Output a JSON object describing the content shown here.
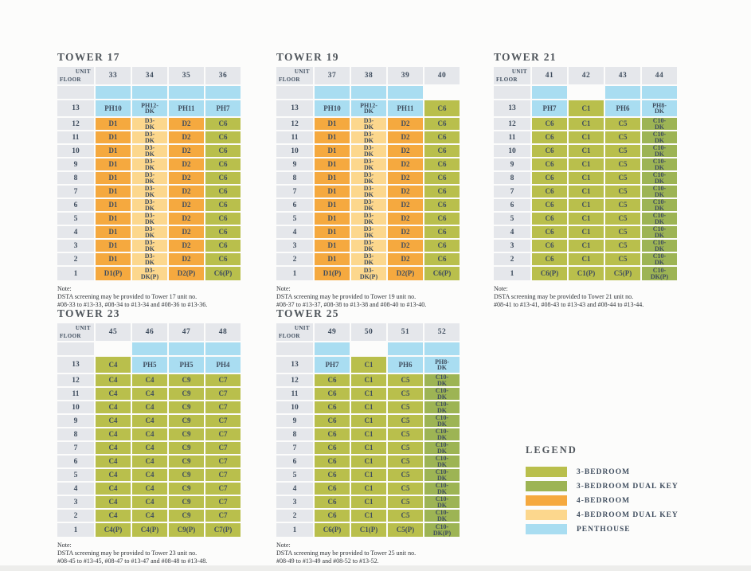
{
  "colors": {
    "3br": "#b9bf4c",
    "3br_dk": "#9db454",
    "4br": "#f5a93f",
    "4br_dk": "#fcd78d",
    "ph": "#a9ddf1",
    "hdr": "#e5e7eb",
    "text": "#3f4d5e",
    "title": "#50565c",
    "note": "#2e3237"
  },
  "corner": {
    "top": "UNIT",
    "bottom": "FLOOR"
  },
  "floors": [
    "13",
    "12",
    "11",
    "10",
    "9",
    "8",
    "7",
    "6",
    "5",
    "4",
    "3",
    "2",
    "1"
  ],
  "towers": [
    {
      "name": "TOWER 17",
      "units": [
        "33",
        "34",
        "35",
        "36"
      ],
      "spacer": [
        "ph",
        "ph",
        "ph",
        "ph"
      ],
      "floor13": [
        {
          "v": "PH10",
          "t": "ph"
        },
        {
          "v": "PH12-DK",
          "t": "ph"
        },
        {
          "v": "PH11",
          "t": "ph"
        },
        {
          "v": "PH7",
          "t": "ph"
        }
      ],
      "mid_floors": [
        {
          "v": "D1",
          "t": "4br"
        },
        {
          "v": "D3-DK",
          "t": "4br_dk"
        },
        {
          "v": "D2",
          "t": "4br"
        },
        {
          "v": "C6",
          "t": "3br"
        }
      ],
      "floor1": [
        {
          "v": "D1(P)",
          "t": "4br"
        },
        {
          "v": "D3-DK(P)",
          "t": "4br_dk"
        },
        {
          "v": "D2(P)",
          "t": "4br"
        },
        {
          "v": "C6(P)",
          "t": "3br"
        }
      ],
      "note": [
        "Note:",
        "DSTA screening may be provided to Tower 17 unit no.",
        "#08-33 to #13-33, #08-34 to #13-34 and #08-36 to #13-36."
      ]
    },
    {
      "name": "TOWER 19",
      "units": [
        "37",
        "38",
        "39",
        "40"
      ],
      "spacer": [
        "ph",
        "ph",
        "ph",
        "empty"
      ],
      "floor13": [
        {
          "v": "PH10",
          "t": "ph"
        },
        {
          "v": "PH12-DK",
          "t": "ph"
        },
        {
          "v": "PH11",
          "t": "ph"
        },
        {
          "v": "C6",
          "t": "3br"
        }
      ],
      "mid_floors": [
        {
          "v": "D1",
          "t": "4br"
        },
        {
          "v": "D3-DK",
          "t": "4br_dk"
        },
        {
          "v": "D2",
          "t": "4br"
        },
        {
          "v": "C6",
          "t": "3br"
        }
      ],
      "floor1": [
        {
          "v": "D1(P)",
          "t": "4br"
        },
        {
          "v": "D3-DK(P)",
          "t": "4br_dk"
        },
        {
          "v": "D2(P)",
          "t": "4br"
        },
        {
          "v": "C6(P)",
          "t": "3br"
        }
      ],
      "note": [
        "Note:",
        "DSTA screening may be provided to Tower 19 unit no.",
        "#08-37 to #13-37, #08-38 to #13-38 and #08-40 to #13-40."
      ]
    },
    {
      "name": "TOWER 21",
      "units": [
        "41",
        "42",
        "43",
        "44"
      ],
      "spacer": [
        "ph",
        "empty",
        "ph",
        "ph"
      ],
      "floor13": [
        {
          "v": "PH7",
          "t": "ph"
        },
        {
          "v": "C1",
          "t": "3br"
        },
        {
          "v": "PH6",
          "t": "ph"
        },
        {
          "v": "PH8-DK",
          "t": "ph"
        }
      ],
      "mid_floors": [
        {
          "v": "C6",
          "t": "3br"
        },
        {
          "v": "C1",
          "t": "3br"
        },
        {
          "v": "C5",
          "t": "3br"
        },
        {
          "v": "C10-DK",
          "t": "3br_dk"
        }
      ],
      "floor1": [
        {
          "v": "C6(P)",
          "t": "3br"
        },
        {
          "v": "C1(P)",
          "t": "3br"
        },
        {
          "v": "C5(P)",
          "t": "3br"
        },
        {
          "v": "C10-DK(P)",
          "t": "3br_dk"
        }
      ],
      "note": [
        "Note:",
        "DSTA screening may be provided to Tower 21 unit no.",
        "#08-41 to #13-41, #08-43 to #13-43 and #08-44 to #13-44."
      ]
    },
    {
      "name": "TOWER 23",
      "units": [
        "45",
        "46",
        "47",
        "48"
      ],
      "spacer": [
        "empty",
        "ph",
        "ph",
        "ph"
      ],
      "floor13": [
        {
          "v": "C4",
          "t": "3br"
        },
        {
          "v": "PH5",
          "t": "ph"
        },
        {
          "v": "PH5",
          "t": "ph"
        },
        {
          "v": "PH4",
          "t": "ph"
        }
      ],
      "mid_floors": [
        {
          "v": "C4",
          "t": "3br"
        },
        {
          "v": "C4",
          "t": "3br"
        },
        {
          "v": "C9",
          "t": "3br"
        },
        {
          "v": "C7",
          "t": "3br"
        }
      ],
      "floor1": [
        {
          "v": "C4(P)",
          "t": "3br"
        },
        {
          "v": "C4(P)",
          "t": "3br"
        },
        {
          "v": "C9(P)",
          "t": "3br"
        },
        {
          "v": "C7(P)",
          "t": "3br"
        }
      ],
      "note": [
        "Note:",
        "DSTA screening may be provided to Tower 23 unit no.",
        "#08-45 to #13-45, #08-47 to #13-47 and #08-48 to #13-48."
      ]
    },
    {
      "name": "TOWER 25",
      "units": [
        "49",
        "50",
        "51",
        "52"
      ],
      "spacer": [
        "ph",
        "empty",
        "ph",
        "ph"
      ],
      "floor13": [
        {
          "v": "PH7",
          "t": "ph"
        },
        {
          "v": "C1",
          "t": "3br"
        },
        {
          "v": "PH6",
          "t": "ph"
        },
        {
          "v": "PH8-DK",
          "t": "ph"
        }
      ],
      "mid_floors": [
        {
          "v": "C6",
          "t": "3br"
        },
        {
          "v": "C1",
          "t": "3br"
        },
        {
          "v": "C5",
          "t": "3br"
        },
        {
          "v": "C10-DK",
          "t": "3br_dk"
        }
      ],
      "floor1": [
        {
          "v": "C6(P)",
          "t": "3br"
        },
        {
          "v": "C1(P)",
          "t": "3br"
        },
        {
          "v": "C5(P)",
          "t": "3br"
        },
        {
          "v": "C10-DK(P)",
          "t": "3br_dk"
        }
      ],
      "note": [
        "Note:",
        "DSTA screening may be provided to Tower 25 unit no.",
        "#08-49 to #13-49 and #08-52 to #13-52."
      ]
    }
  ],
  "legend": {
    "title": "LEGEND",
    "items": [
      {
        "label": "3-BEDROOM",
        "type": "3br"
      },
      {
        "label": "3-BEDROOM DUAL KEY",
        "type": "3br_dk"
      },
      {
        "label": "4-BEDROOM",
        "type": "4br"
      },
      {
        "label": "4-BEDROOM DUAL KEY",
        "type": "4br_dk"
      },
      {
        "label": "PENTHOUSE",
        "type": "ph"
      }
    ]
  }
}
